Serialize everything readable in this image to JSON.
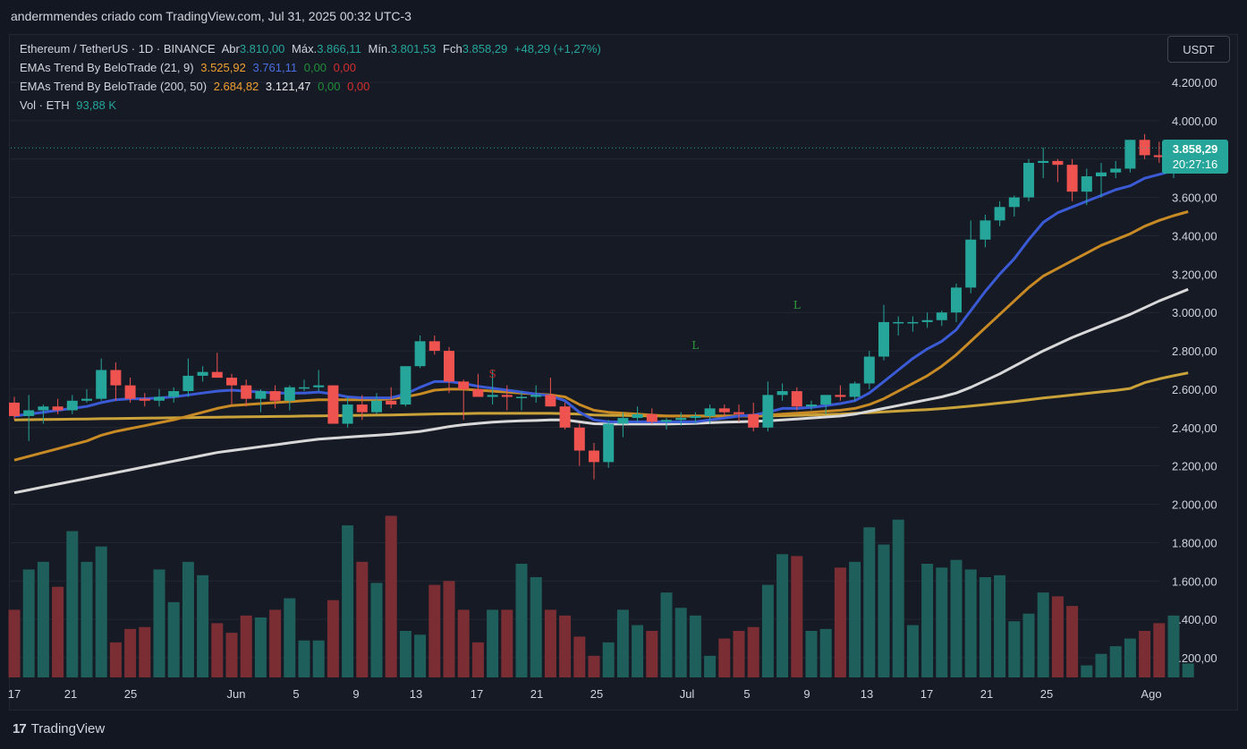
{
  "caption": "andermmendes criado com TradingView.com, Jul 31, 2025 00:32 UTC-3",
  "legend": {
    "symbol_line": "Ethereum / TetherUS · 1D · BINANCE",
    "open_label": "Abr",
    "open": "3.810,00",
    "high_label": "Máx.",
    "high": "3.866,11",
    "low_label": "Mín.",
    "low": "3.801,53",
    "close_label": "Fch",
    "close": "3.858,29",
    "change": "+48,29 (+1,27%)",
    "ema1_name": "EMAs Trend By BeloTrade (21, 9)",
    "ema1_v1": "3.525,92",
    "ema1_v2": "3.761,11",
    "ema1_v3": "0,00",
    "ema1_v4": "0,00",
    "ema2_name": "EMAs Trend By BeloTrade (200, 50)",
    "ema2_v1": "2.684,82",
    "ema2_v2": "3.121,47",
    "ema2_v3": "0,00",
    "ema2_v4": "0,00",
    "vol_label": "Vol · ETH",
    "vol_value": "93,88 K"
  },
  "currency_button": "USDT",
  "price_tag": {
    "price": "3.858,29",
    "countdown": "20:27:16"
  },
  "brand": {
    "logo": "17",
    "name": "TradingView"
  },
  "colors": {
    "up": "#26a69a",
    "down": "#ef5350",
    "vol_up": "#1f5f5b",
    "vol_down": "#7a2e33",
    "ema_fast": "#3b5bd6",
    "ema_mid": "#c88a24",
    "ema_long_white": "#d8d8d8",
    "ema_long_gold": "#c9a23a",
    "grid": "#232733"
  },
  "chart_data": {
    "type": "candlestick",
    "y_ticks": [
      "4.200,00",
      "4.000,00",
      "3.800,00",
      "3.600,00",
      "3.400,00",
      "3.200,00",
      "3.000,00",
      "2.800,00",
      "2.600,00",
      "2.400,00",
      "2.200,00",
      "2.000,00",
      "1.800,00",
      "1.600,00",
      "1.400,00",
      "1.200,00"
    ],
    "x_ticks": [
      "17",
      "21",
      "25",
      "Jun",
      "5",
      "9",
      "13",
      "17",
      "21",
      "25",
      "Jul",
      "5",
      "9",
      "13",
      "17",
      "21",
      "25",
      "Ago"
    ],
    "price_range": [
      2040,
      4330
    ],
    "signals": [
      {
        "text": "S",
        "index": 33,
        "price": 2660
      },
      {
        "text": "L",
        "index": 47,
        "price": 2810
      },
      {
        "text": "L",
        "index": 54,
        "price": 3020
      }
    ],
    "candles": [
      [
        2530,
        2560,
        2440,
        2460
      ],
      [
        2460,
        2570,
        2330,
        2490
      ],
      [
        2490,
        2520,
        2420,
        2510
      ],
      [
        2510,
        2550,
        2470,
        2490
      ],
      [
        2490,
        2570,
        2470,
        2540
      ],
      [
        2540,
        2600,
        2530,
        2550
      ],
      [
        2550,
        2760,
        2540,
        2700
      ],
      [
        2700,
        2740,
        2540,
        2620
      ],
      [
        2620,
        2660,
        2530,
        2550
      ],
      [
        2550,
        2580,
        2510,
        2540
      ],
      [
        2540,
        2600,
        2510,
        2560
      ],
      [
        2560,
        2610,
        2530,
        2590
      ],
      [
        2590,
        2760,
        2560,
        2670
      ],
      [
        2670,
        2720,
        2640,
        2690
      ],
      [
        2690,
        2790,
        2660,
        2660
      ],
      [
        2660,
        2680,
        2520,
        2620
      ],
      [
        2620,
        2650,
        2510,
        2550
      ],
      [
        2550,
        2600,
        2480,
        2590
      ],
      [
        2590,
        2620,
        2500,
        2540
      ],
      [
        2540,
        2620,
        2490,
        2610
      ],
      [
        2610,
        2650,
        2590,
        2610
      ],
      [
        2610,
        2700,
        2590,
        2620
      ],
      [
        2620,
        2620,
        2430,
        2420
      ],
      [
        2420,
        2560,
        2400,
        2520
      ],
      [
        2520,
        2570,
        2440,
        2480
      ],
      [
        2480,
        2580,
        2470,
        2540
      ],
      [
        2540,
        2610,
        2500,
        2520
      ],
      [
        2520,
        2720,
        2510,
        2720
      ],
      [
        2720,
        2880,
        2710,
        2850
      ],
      [
        2850,
        2880,
        2780,
        2800
      ],
      [
        2800,
        2820,
        2580,
        2640
      ],
      [
        2640,
        2650,
        2440,
        2600
      ],
      [
        2600,
        2680,
        2560,
        2560
      ],
      [
        2560,
        2700,
        2520,
        2570
      ],
      [
        2570,
        2620,
        2490,
        2560
      ],
      [
        2560,
        2590,
        2490,
        2560
      ],
      [
        2560,
        2620,
        2530,
        2570
      ],
      [
        2570,
        2660,
        2510,
        2510
      ],
      [
        2510,
        2530,
        2390,
        2400
      ],
      [
        2400,
        2420,
        2200,
        2280
      ],
      [
        2280,
        2320,
        2130,
        2220
      ],
      [
        2220,
        2440,
        2190,
        2420
      ],
      [
        2420,
        2480,
        2350,
        2450
      ],
      [
        2450,
        2510,
        2430,
        2470
      ],
      [
        2470,
        2500,
        2420,
        2430
      ],
      [
        2430,
        2450,
        2390,
        2440
      ],
      [
        2440,
        2480,
        2410,
        2450
      ],
      [
        2450,
        2480,
        2420,
        2460
      ],
      [
        2460,
        2520,
        2420,
        2500
      ],
      [
        2500,
        2520,
        2460,
        2480
      ],
      [
        2480,
        2520,
        2430,
        2470
      ],
      [
        2470,
        2530,
        2380,
        2400
      ],
      [
        2400,
        2640,
        2380,
        2570
      ],
      [
        2570,
        2630,
        2540,
        2590
      ],
      [
        2590,
        2610,
        2490,
        2510
      ],
      [
        2510,
        2540,
        2490,
        2520
      ],
      [
        2520,
        2570,
        2470,
        2570
      ],
      [
        2570,
        2620,
        2540,
        2560
      ],
      [
        2560,
        2640,
        2540,
        2630
      ],
      [
        2630,
        2800,
        2600,
        2770
      ],
      [
        2770,
        3040,
        2750,
        2950
      ],
      [
        2950,
        2980,
        2880,
        2950
      ],
      [
        2950,
        2980,
        2900,
        2950
      ],
      [
        2950,
        3000,
        2920,
        2960
      ],
      [
        2960,
        3010,
        2930,
        3000
      ],
      [
        3000,
        3150,
        2950,
        3130
      ],
      [
        3130,
        3480,
        3100,
        3380
      ],
      [
        3380,
        3510,
        3340,
        3480
      ],
      [
        3480,
        3580,
        3450,
        3550
      ],
      [
        3550,
        3610,
        3500,
        3600
      ],
      [
        3600,
        3800,
        3580,
        3780
      ],
      [
        3780,
        3860,
        3700,
        3790
      ],
      [
        3790,
        3800,
        3680,
        3770
      ],
      [
        3770,
        3800,
        3580,
        3630
      ],
      [
        3630,
        3750,
        3560,
        3710
      ],
      [
        3710,
        3780,
        3600,
        3730
      ],
      [
        3730,
        3790,
        3700,
        3750
      ],
      [
        3750,
        3900,
        3730,
        3900
      ],
      [
        3900,
        3930,
        3800,
        3820
      ],
      [
        3820,
        3890,
        3780,
        3810
      ],
      [
        3810,
        3860,
        3700,
        3810
      ],
      [
        3810,
        3866,
        3801,
        3858
      ]
    ],
    "ema_fast": [
      2460,
      2470,
      2480,
      2490,
      2500,
      2510,
      2530,
      2545,
      2550,
      2550,
      2555,
      2560,
      2570,
      2580,
      2590,
      2595,
      2590,
      2585,
      2580,
      2580,
      2580,
      2585,
      2575,
      2560,
      2555,
      2555,
      2555,
      2575,
      2610,
      2640,
      2640,
      2630,
      2615,
      2605,
      2595,
      2585,
      2575,
      2565,
      2540,
      2480,
      2440,
      2430,
      2430,
      2430,
      2430,
      2430,
      2430,
      2430,
      2440,
      2450,
      2460,
      2465,
      2480,
      2500,
      2500,
      2505,
      2515,
      2525,
      2540,
      2580,
      2640,
      2700,
      2760,
      2810,
      2850,
      2910,
      3010,
      3110,
      3200,
      3280,
      3380,
      3470,
      3520,
      3550,
      3580,
      3610,
      3640,
      3660,
      3700,
      3720,
      3740,
      3761
    ],
    "ema_mid": [
      2230,
      2250,
      2270,
      2290,
      2310,
      2330,
      2360,
      2380,
      2395,
      2410,
      2425,
      2440,
      2460,
      2480,
      2500,
      2515,
      2520,
      2525,
      2530,
      2535,
      2540,
      2545,
      2545,
      2545,
      2545,
      2545,
      2550,
      2560,
      2575,
      2595,
      2600,
      2600,
      2595,
      2590,
      2585,
      2580,
      2575,
      2570,
      2560,
      2520,
      2490,
      2480,
      2475,
      2470,
      2465,
      2460,
      2460,
      2460,
      2460,
      2460,
      2460,
      2460,
      2465,
      2470,
      2475,
      2480,
      2485,
      2490,
      2500,
      2520,
      2550,
      2590,
      2630,
      2670,
      2720,
      2780,
      2850,
      2920,
      2990,
      3060,
      3130,
      3190,
      3230,
      3270,
      3310,
      3350,
      3380,
      3410,
      3450,
      3480,
      3505,
      3526
    ],
    "ema_long_white": [
      2060,
      2075,
      2090,
      2105,
      2120,
      2135,
      2150,
      2165,
      2180,
      2195,
      2210,
      2225,
      2240,
      2255,
      2270,
      2280,
      2290,
      2300,
      2310,
      2320,
      2330,
      2340,
      2345,
      2350,
      2355,
      2360,
      2365,
      2372,
      2380,
      2392,
      2405,
      2415,
      2422,
      2428,
      2432,
      2435,
      2437,
      2440,
      2440,
      2430,
      2420,
      2418,
      2418,
      2418,
      2418,
      2418,
      2420,
      2422,
      2425,
      2428,
      2430,
      2432,
      2435,
      2440,
      2445,
      2450,
      2455,
      2460,
      2470,
      2485,
      2500,
      2515,
      2530,
      2545,
      2560,
      2580,
      2610,
      2645,
      2680,
      2720,
      2760,
      2800,
      2835,
      2870,
      2900,
      2930,
      2960,
      2990,
      3025,
      3060,
      3090,
      3121
    ],
    "ema_long_gold": [
      2440,
      2441,
      2442,
      2443,
      2444,
      2445,
      2446,
      2447,
      2448,
      2449,
      2450,
      2451,
      2452,
      2453,
      2454,
      2455,
      2456,
      2457,
      2458,
      2459,
      2460,
      2461,
      2462,
      2463,
      2464,
      2465,
      2466,
      2467,
      2469,
      2471,
      2472,
      2473,
      2474,
      2474,
      2474,
      2474,
      2474,
      2474,
      2473,
      2470,
      2466,
      2464,
      2463,
      2462,
      2461,
      2460,
      2460,
      2460,
      2460,
      2460,
      2460,
      2460,
      2461,
      2462,
      2464,
      2466,
      2468,
      2470,
      2474,
      2478,
      2482,
      2486,
      2490,
      2494,
      2499,
      2505,
      2512,
      2520,
      2528,
      2536,
      2545,
      2554,
      2562,
      2570,
      2578,
      2586,
      2594,
      2604,
      2634,
      2654,
      2670,
      2685
    ],
    "volume": [
      1450,
      1660,
      1700,
      1570,
      1860,
      1700,
      1780,
      1280,
      1350,
      1360,
      1660,
      1490,
      1700,
      1630,
      1380,
      1330,
      1420,
      1410,
      1450,
      1510,
      1290,
      1290,
      1500,
      1890,
      1700,
      1590,
      1940,
      1340,
      1320,
      1580,
      1600,
      1450,
      1280,
      1450,
      1450,
      1690,
      1620,
      1450,
      1420,
      1310,
      1210,
      1280,
      1450,
      1370,
      1340,
      1540,
      1460,
      1420,
      1210,
      1300,
      1340,
      1360,
      1580,
      1740,
      1730,
      1340,
      1350,
      1670,
      1700,
      1880,
      1790,
      1920,
      1370,
      1690,
      1670,
      1710,
      1660,
      1620,
      1630,
      1390,
      1430,
      1540,
      1520,
      1470,
      1160,
      1220,
      1260,
      1300,
      1340,
      1380,
      1420,
      1170
    ],
    "volume_range": [
      1100,
      2000
    ]
  }
}
